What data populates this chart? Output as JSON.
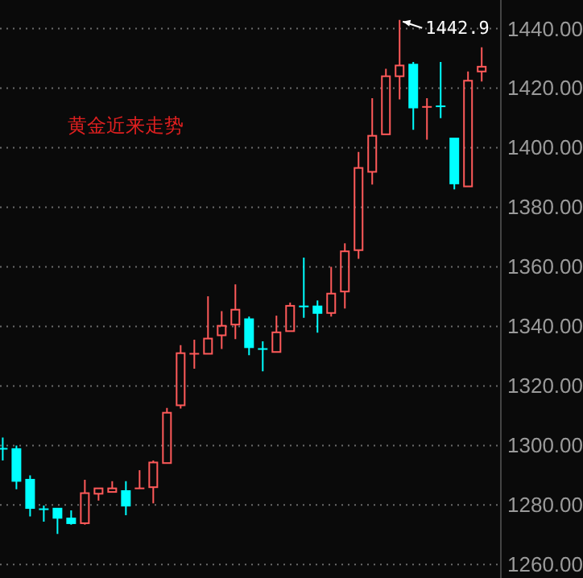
{
  "chart_data": {
    "type": "candlestick",
    "annotations": [
      "黄金近来走势",
      "1442.9"
    ],
    "categories": [
      null,
      null,
      null,
      null,
      null,
      null,
      null,
      null,
      null,
      null,
      null,
      null,
      null,
      null,
      null,
      null,
      null,
      null,
      null,
      null,
      null,
      null,
      null,
      null,
      null,
      null,
      null,
      null,
      null,
      null,
      null,
      null,
      null,
      null,
      null,
      null
    ],
    "ohlc": [
      [
        1298.9,
        1302.7,
        1295.0,
        1298.9
      ],
      [
        1298.8,
        1300.0,
        1285.3,
        1288.1
      ],
      [
        1288.5,
        1290.0,
        1276.2,
        1279.0
      ],
      [
        1278.6,
        1279.8,
        1274.4,
        1278.6
      ],
      [
        1278.8,
        1278.8,
        1270.3,
        1275.7
      ],
      [
        1275.5,
        1278.2,
        1273.4,
        1273.9
      ],
      [
        1273.9,
        1288.5,
        1273.4,
        1284.0
      ],
      [
        1283.8,
        1285.6,
        1281.5,
        1285.6
      ],
      [
        1284.4,
        1288.0,
        1284.4,
        1285.6
      ],
      [
        1284.7,
        1288.0,
        1276.6,
        1279.8
      ],
      [
        1285.6,
        1291.7,
        1285.6,
        1285.6
      ],
      [
        1286.0,
        1295.0,
        1280.6,
        1294.3
      ],
      [
        1294.1,
        1312.6,
        1293.9,
        1311.0
      ],
      [
        1313.5,
        1333.7,
        1312.4,
        1331.0
      ],
      [
        1330.8,
        1335.5,
        1325.8,
        1330.8
      ],
      [
        1330.8,
        1350.1,
        1330.8,
        1335.9
      ],
      [
        1337.0,
        1345.1,
        1332.4,
        1340.2
      ],
      [
        1340.6,
        1354.1,
        1335.7,
        1345.6
      ],
      [
        1342.4,
        1343.3,
        1330.3,
        1333.0
      ],
      [
        1332.4,
        1335.0,
        1324.9,
        1332.4
      ],
      [
        1331.4,
        1343.6,
        1331.4,
        1338.0
      ],
      [
        1338.4,
        1348.0,
        1338.4,
        1346.9
      ],
      [
        1346.7,
        1363.1,
        1342.9,
        1346.7
      ],
      [
        1346.7,
        1348.7,
        1337.9,
        1344.5
      ],
      [
        1344.5,
        1360.0,
        1343.3,
        1351.0
      ],
      [
        1351.7,
        1367.9,
        1346.0,
        1365.2
      ],
      [
        1365.6,
        1398.6,
        1362.7,
        1393.2
      ],
      [
        1391.9,
        1416.6,
        1387.6,
        1404.0
      ],
      [
        1404.5,
        1426.5,
        1404.5,
        1424.0
      ],
      [
        1424.0,
        1442.9,
        1416.2,
        1427.6
      ],
      [
        1427.9,
        1428.8,
        1406.0,
        1413.5
      ],
      [
        1413.7,
        1416.6,
        1402.7,
        1413.7
      ],
      [
        1413.9,
        1428.8,
        1409.9,
        1413.9
      ],
      [
        1403.1,
        1403.1,
        1386.0,
        1388.0
      ],
      [
        1387.0,
        1425.6,
        1387.0,
        1422.5
      ],
      [
        1425.6,
        1433.7,
        1422.2,
        1427.2
      ]
    ],
    "colors": [
      "#00ffff",
      "#00ffff",
      "#00ffff",
      "#00ffff",
      "#00ffff",
      "#00ffff",
      "#ff5a5a",
      "#ff5a5a",
      "#ff5a5a",
      "#00ffff",
      "#ff5a5a",
      "#ff5a5a",
      "#ff5a5a",
      "#ff5a5a",
      "#ff5a5a",
      "#ff5a5a",
      "#ff5a5a",
      "#ff5a5a",
      "#00ffff",
      "#00ffff",
      "#ff5a5a",
      "#ff5a5a",
      "#00ffff",
      "#00ffff",
      "#ff5a5a",
      "#ff5a5a",
      "#ff5a5a",
      "#ff5a5a",
      "#ff5a5a",
      "#ff5a5a",
      "#00ffff",
      "#ff5a5a",
      "#00ffff",
      "#00ffff",
      "#ff5a5a",
      "#ff5a5a"
    ],
    "ylim": [
      1255.5,
      1449.6
    ],
    "yticks": [
      {
        "value": 1260,
        "label": "1260.00"
      },
      {
        "value": 1280,
        "label": "1280.00"
      },
      {
        "value": 1300,
        "label": "1300.00"
      },
      {
        "value": 1320,
        "label": "1320.00"
      },
      {
        "value": 1340,
        "label": "1340.00"
      },
      {
        "value": 1360,
        "label": "1360.00"
      },
      {
        "value": 1380,
        "label": "1380.00"
      },
      {
        "value": 1400,
        "label": "1400.00"
      },
      {
        "value": 1420,
        "label": "1420.00"
      },
      {
        "value": 1440,
        "label": "1440.00"
      }
    ],
    "grid": "y"
  }
}
